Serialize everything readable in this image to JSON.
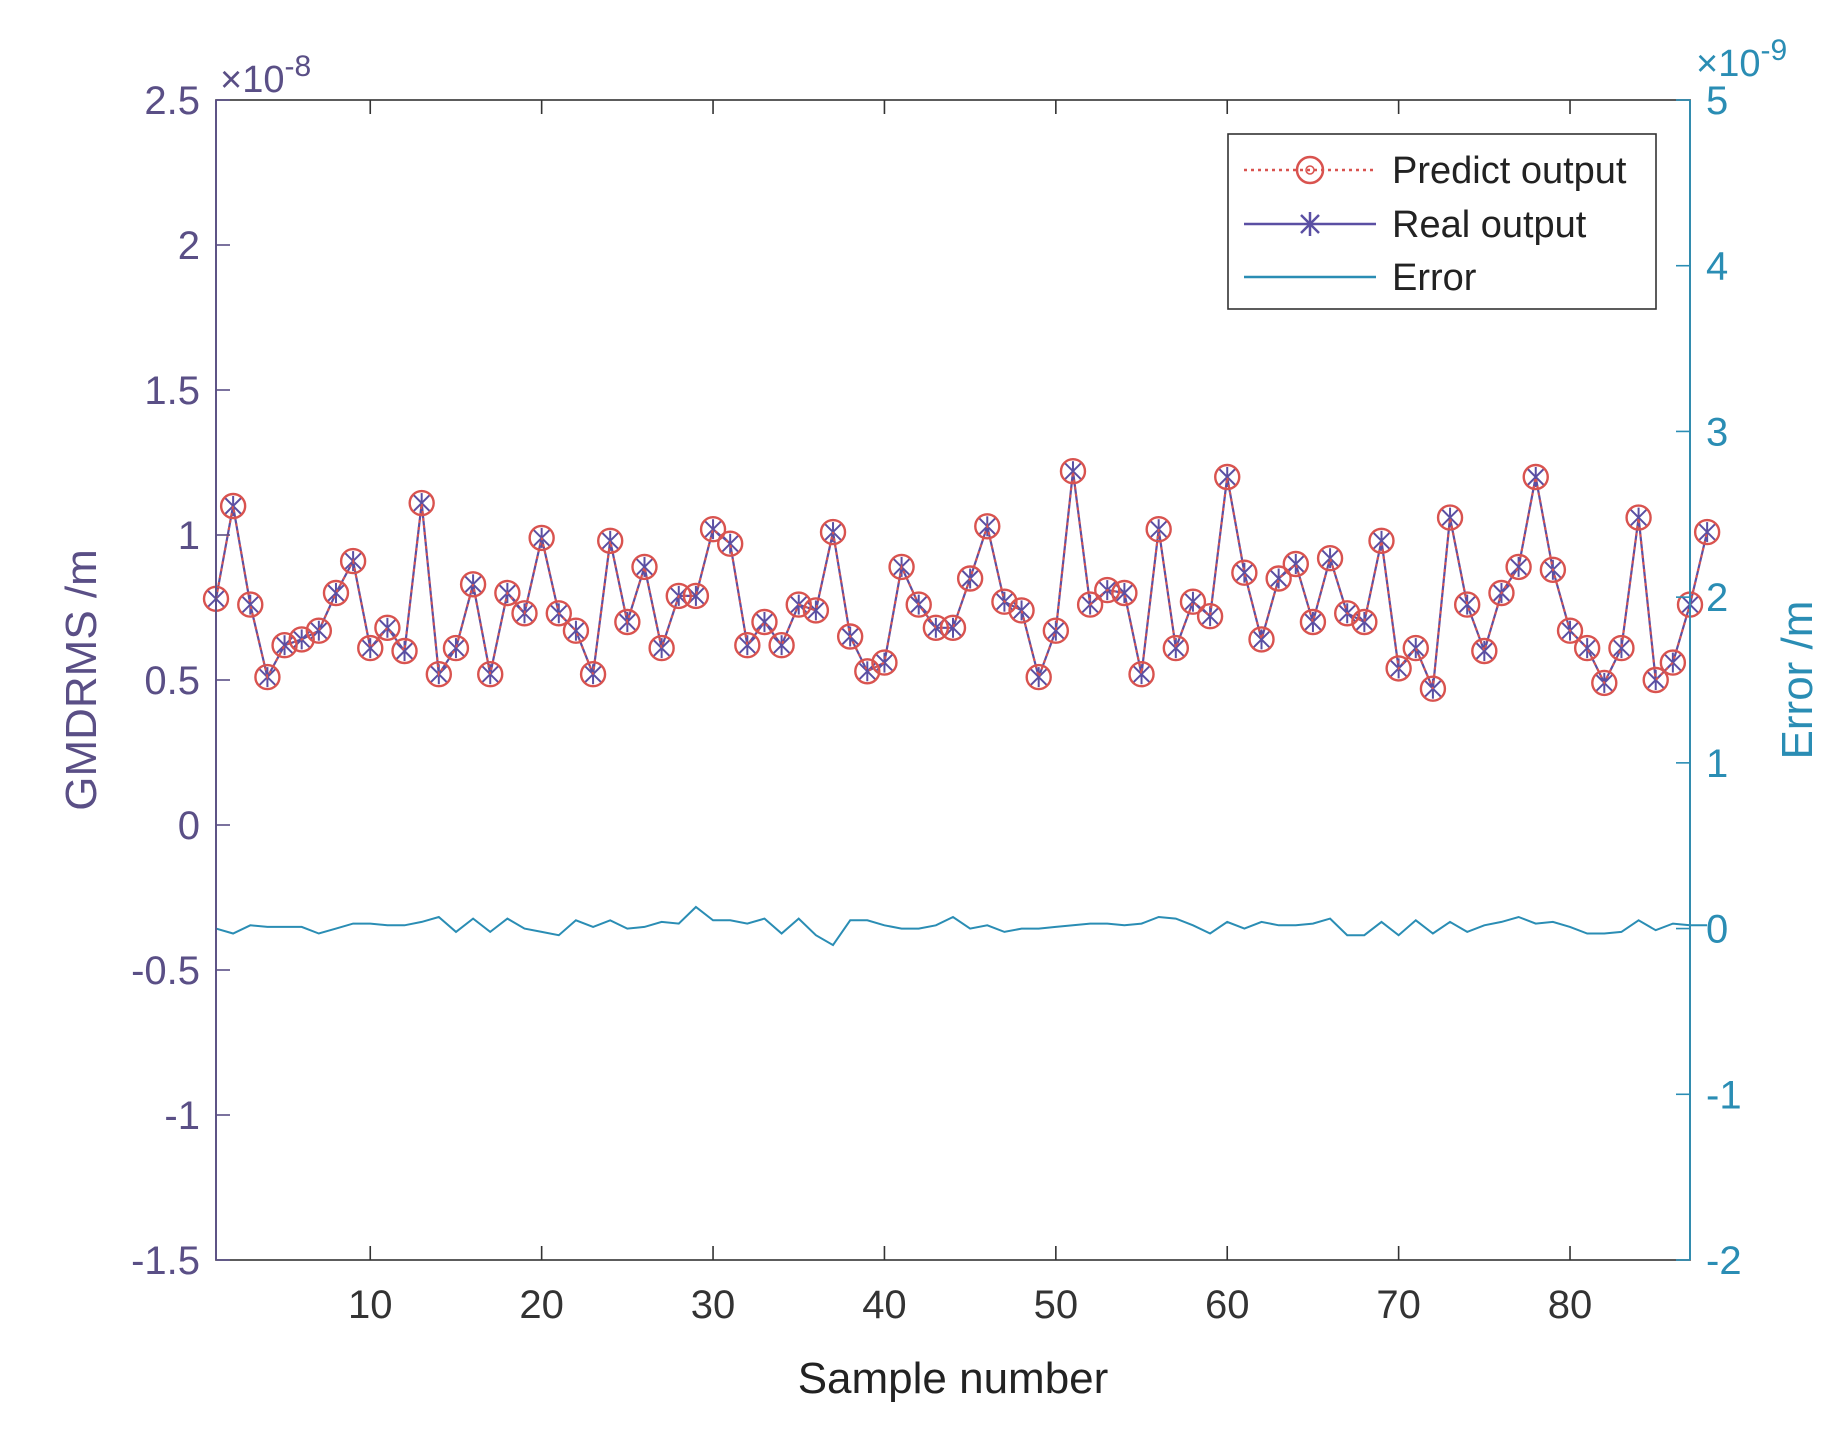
{
  "chart_data": {
    "type": "line",
    "title": "",
    "xlabel": "Sample number",
    "ylabel_left": "GMDRMS /m",
    "ylabel_right": "Error /m",
    "left_exponent_label": "×10",
    "left_exponent_power": "-8",
    "right_exponent_label": "×10",
    "right_exponent_power": "-9",
    "xlim": [
      1,
      87
    ],
    "ylim_left": [
      -1.5,
      2.5
    ],
    "ylim_right": [
      -2,
      5
    ],
    "x_ticks": [
      10,
      20,
      30,
      40,
      50,
      60,
      70,
      80
    ],
    "x_tick_labels": [
      "10",
      "20",
      "30",
      "40",
      "50",
      "60",
      "70",
      "80"
    ],
    "y_left_ticks": [
      -1.5,
      -1,
      -0.5,
      0,
      0.5,
      1,
      1.5,
      2,
      2.5
    ],
    "y_left_tick_labels": [
      "-1.5",
      "-1",
      "-0.5",
      "0",
      "0.5",
      "1",
      "1.5",
      "2",
      "2.5"
    ],
    "y_right_ticks": [
      -2,
      -1,
      0,
      1,
      2,
      3,
      4,
      5
    ],
    "y_right_tick_labels": [
      "-2",
      "-1",
      "0",
      "1",
      "2",
      "3",
      "4",
      "5"
    ],
    "legend_position": "top-right",
    "grid": false,
    "series": [
      {
        "name": "Predict output",
        "axis": "left",
        "marker": "circle",
        "line": "dotted",
        "color": "#d9534f",
        "values": [
          0.78,
          1.1,
          0.76,
          0.51,
          0.62,
          0.64,
          0.67,
          0.8,
          0.91,
          0.61,
          0.68,
          0.6,
          1.11,
          0.52,
          0.61,
          0.83,
          0.52,
          0.8,
          0.73,
          0.99,
          0.73,
          0.67,
          0.52,
          0.98,
          0.7,
          0.89,
          0.61,
          0.79,
          0.79,
          1.02,
          0.97,
          0.62,
          0.7,
          0.62,
          0.76,
          0.74,
          1.01,
          0.65,
          0.53,
          0.56,
          0.89,
          0.76,
          0.68,
          0.68,
          0.85,
          1.03,
          0.77,
          0.74,
          0.51,
          0.67,
          1.22,
          0.76,
          0.81,
          0.8,
          0.52,
          1.02,
          0.61,
          0.77,
          0.72,
          1.2,
          0.87,
          0.64,
          0.85,
          0.9,
          0.7,
          0.92,
          0.73,
          0.7,
          0.98,
          0.54,
          0.61,
          0.47,
          1.06,
          0.76,
          0.6,
          0.8,
          0.89,
          1.2,
          0.88,
          0.67,
          0.61,
          0.49,
          0.61,
          1.06,
          0.5,
          0.56,
          0.76,
          1.01
        ]
      },
      {
        "name": "Real output",
        "axis": "left",
        "marker": "asterisk",
        "line": "solid",
        "color": "#5a4fa3",
        "values": [
          0.78,
          1.1,
          0.76,
          0.51,
          0.62,
          0.64,
          0.67,
          0.8,
          0.91,
          0.61,
          0.68,
          0.6,
          1.11,
          0.52,
          0.61,
          0.83,
          0.52,
          0.8,
          0.73,
          0.99,
          0.73,
          0.67,
          0.52,
          0.98,
          0.7,
          0.89,
          0.61,
          0.79,
          0.79,
          1.02,
          0.97,
          0.62,
          0.7,
          0.62,
          0.76,
          0.74,
          1.01,
          0.65,
          0.53,
          0.56,
          0.89,
          0.76,
          0.68,
          0.68,
          0.85,
          1.03,
          0.77,
          0.74,
          0.51,
          0.67,
          1.22,
          0.76,
          0.81,
          0.8,
          0.52,
          1.02,
          0.61,
          0.77,
          0.72,
          1.2,
          0.87,
          0.64,
          0.85,
          0.9,
          0.7,
          0.92,
          0.73,
          0.7,
          0.98,
          0.54,
          0.61,
          0.47,
          1.06,
          0.76,
          0.6,
          0.8,
          0.89,
          1.2,
          0.88,
          0.67,
          0.61,
          0.49,
          0.61,
          1.06,
          0.5,
          0.56,
          0.76,
          1.01
        ]
      },
      {
        "name": "Error",
        "axis": "right",
        "marker": "none",
        "line": "solid",
        "color": "#2a8db4",
        "values": [
          0.0,
          -0.03,
          0.02,
          0.01,
          0.01,
          0.01,
          -0.03,
          0.0,
          0.03,
          0.03,
          0.02,
          0.02,
          0.04,
          0.07,
          -0.02,
          0.06,
          -0.02,
          0.06,
          0.0,
          -0.02,
          -0.04,
          0.05,
          0.01,
          0.05,
          0.0,
          0.01,
          0.04,
          0.03,
          0.13,
          0.05,
          0.05,
          0.03,
          0.06,
          -0.03,
          0.06,
          -0.04,
          -0.1,
          0.05,
          0.05,
          0.02,
          0.0,
          0.0,
          0.02,
          0.07,
          0.0,
          0.02,
          -0.02,
          0.0,
          0.0,
          0.01,
          0.02,
          0.03,
          0.03,
          0.02,
          0.03,
          0.07,
          0.06,
          0.02,
          -0.03,
          0.04,
          0.0,
          0.04,
          0.02,
          0.02,
          0.03,
          0.06,
          -0.04,
          -0.04,
          0.04,
          -0.04,
          0.05,
          -0.03,
          0.04,
          -0.02,
          0.02,
          0.04,
          0.07,
          0.03,
          0.04,
          0.01,
          -0.03,
          -0.03,
          -0.02,
          0.05,
          -0.01,
          0.03,
          0.02,
          0.02
        ]
      }
    ]
  }
}
